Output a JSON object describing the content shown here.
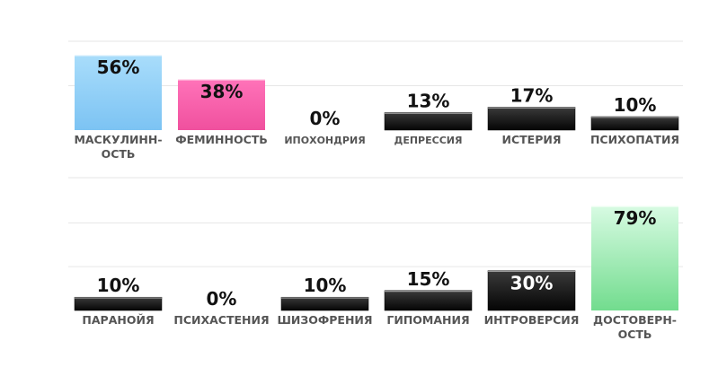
{
  "chart_data": [
    {
      "type": "bar",
      "categories": [
        [
          "МАСКУЛИНН-",
          "ОСТЬ"
        ],
        [
          "ФЕМИННОСТЬ"
        ],
        [
          "ИПОХОНДРИЯ"
        ],
        [
          "ДЕПРЕССИЯ"
        ],
        [
          "ИСТЕРИЯ"
        ],
        [
          "ПСИХОПАТИЯ"
        ]
      ],
      "values": [
        56,
        38,
        0,
        13,
        17,
        10
      ],
      "value_labels": [
        "56%",
        "38%",
        "0%",
        "13%",
        "17%",
        "10%"
      ],
      "bar_styles": [
        "blue",
        "pink",
        "black",
        "black",
        "black",
        "black"
      ],
      "ylim": [
        0,
        100
      ],
      "grid": true
    },
    {
      "type": "bar",
      "categories": [
        [
          "ПАРАНОЙЯ"
        ],
        [
          "ПСИХАСТЕНИЯ"
        ],
        [
          "ШИЗОФРЕНИЯ"
        ],
        [
          "ГИПОМАНИЯ"
        ],
        [
          "ИНТРОВЕРСИЯ"
        ],
        [
          "ДОСТОВЕРН-",
          "ОСТЬ"
        ]
      ],
      "values": [
        10,
        0,
        10,
        15,
        30,
        79
      ],
      "value_labels": [
        "10%",
        "0%",
        "10%",
        "15%",
        "30%",
        "79%"
      ],
      "bar_styles": [
        "black",
        "black",
        "black",
        "black",
        "black",
        "green"
      ],
      "ylim": [
        0,
        100
      ],
      "grid": true
    }
  ],
  "colors": {
    "blue_top": "#a9ddfb",
    "blue_bottom": "#7cc3f3",
    "pink_top": "#ff73b9",
    "pink_bottom": "#f0509e",
    "green_top": "#d8fbe3",
    "green_bottom": "#72dc8e",
    "black_top": "#3a3a3a",
    "black_bottom": "#050505",
    "grid": "#e6e6e6",
    "label": "#555555"
  }
}
